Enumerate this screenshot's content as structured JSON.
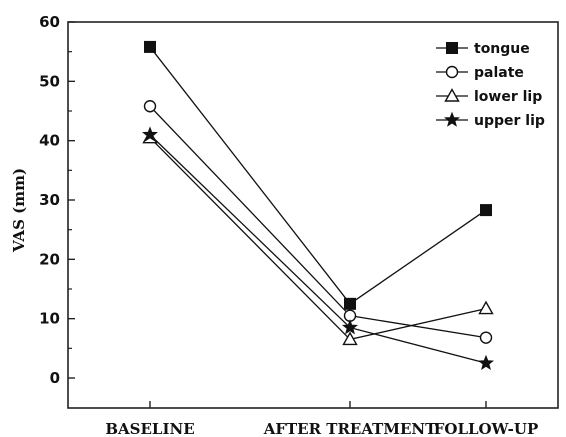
{
  "chart_data": {
    "type": "line",
    "categories": [
      "BASELINE",
      "AFTER TREATMENT",
      "FOLLOW-UP"
    ],
    "ylabel": "VAS (mm)",
    "xlabel": "",
    "ylim": [
      0,
      60
    ],
    "yticks": [
      0,
      10,
      20,
      30,
      40,
      50,
      60
    ],
    "grid": false,
    "legend_position": "top-right",
    "series": [
      {
        "name": "tongue",
        "marker": "filled-square",
        "values": [
          55.8,
          12.5,
          28.3
        ]
      },
      {
        "name": "palate",
        "marker": "open-circle",
        "values": [
          45.8,
          10.5,
          6.8
        ]
      },
      {
        "name": "lower lip",
        "marker": "open-triangle",
        "values": [
          40.5,
          6.5,
          11.7
        ]
      },
      {
        "name": "upper lip",
        "marker": "filled-star",
        "values": [
          41.0,
          8.5,
          2.5
        ]
      }
    ]
  }
}
